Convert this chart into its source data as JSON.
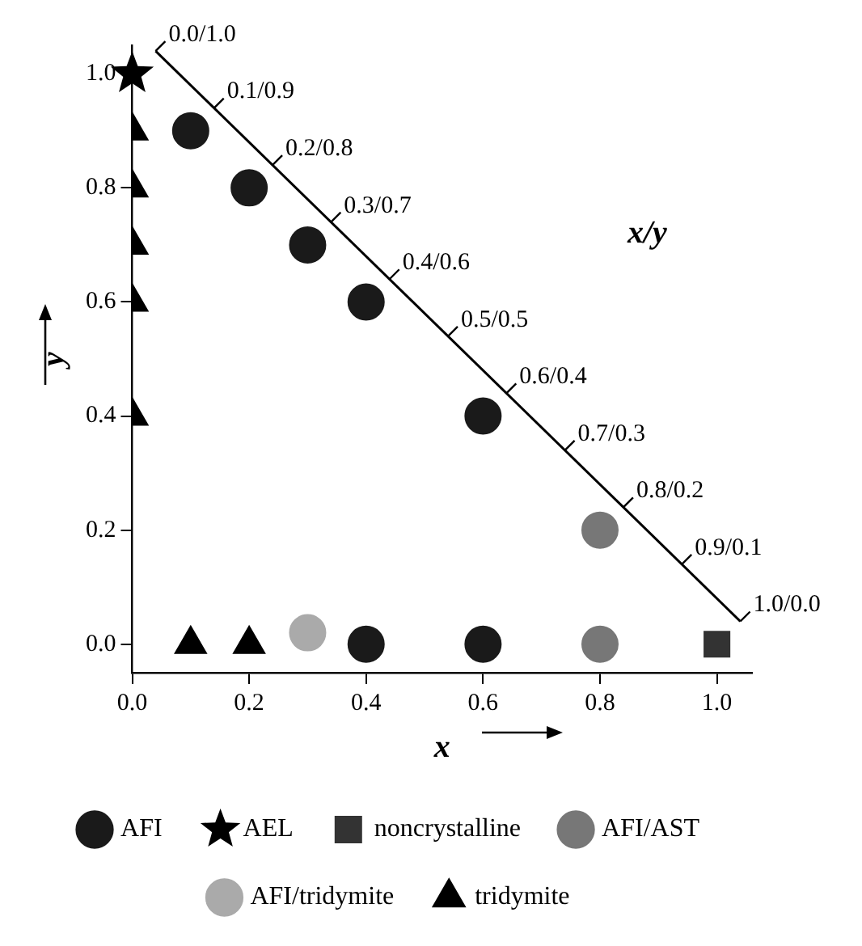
{
  "chart_data": {
    "type": "scatter",
    "xlabel": "x",
    "ylabel": "y",
    "xlim": [
      0,
      1.06
    ],
    "ylim": [
      -0.05,
      1.05
    ],
    "xticks": [
      {
        "value": 0,
        "label": "0.0"
      },
      {
        "value": 0.2,
        "label": "0.2"
      },
      {
        "value": 0.4,
        "label": "0.4"
      },
      {
        "value": 0.6,
        "label": "0.6"
      },
      {
        "value": 0.8,
        "label": "0.8"
      },
      {
        "value": 1,
        "label": "1.0"
      }
    ],
    "yticks": [
      {
        "value": 0,
        "label": "0.0"
      },
      {
        "value": 0.2,
        "label": "0.2"
      },
      {
        "value": 0.4,
        "label": "0.4"
      },
      {
        "value": 0.6,
        "label": "0.6"
      },
      {
        "value": 0.8,
        "label": "0.8"
      },
      {
        "value": 1,
        "label": "1.0"
      }
    ],
    "grid": false,
    "legend": "bottom",
    "series": [
      {
        "type": "line",
        "color": "#000000",
        "marker": "none",
        "x": [
          0.04,
          1.04
        ],
        "values": [
          1.04,
          0.04
        ]
      },
      {
        "name": "AFI",
        "color": "#1a1a1a",
        "marker": "circle",
        "x": [
          0.1,
          0.2,
          0.3,
          0.4,
          0.6,
          0.4,
          0.6
        ],
        "values": [
          0.9,
          0.8,
          0.7,
          0.6,
          0.4,
          0,
          0
        ]
      },
      {
        "name": "AEL",
        "color": "#000000",
        "marker": "star",
        "x": [
          0
        ],
        "values": [
          1
        ]
      },
      {
        "name": "noncrystalline",
        "color": "#333333",
        "marker": "square",
        "x": [
          1
        ],
        "values": [
          0
        ]
      },
      {
        "name": "AFI/AST",
        "color": "#777777",
        "marker": "circle",
        "x": [
          0.8,
          0.8
        ],
        "values": [
          0.2,
          0
        ]
      },
      {
        "name": "AFI/tridymite",
        "color": "#aaaaaa",
        "marker": "circle",
        "x": [
          0.3
        ],
        "values": [
          0.02
        ]
      },
      {
        "name": "tridymite",
        "color": "#000000",
        "marker": "triangle",
        "x": [
          0,
          0,
          0,
          0,
          0,
          0.1,
          0.2
        ],
        "values": [
          0.9,
          0.8,
          0.7,
          0.6,
          0.4,
          0,
          0
        ]
      }
    ],
    "annotations": [
      {
        "text": "0.0/1.0",
        "x": 0.04,
        "y": 1.04
      },
      {
        "text": "0.1/0.9",
        "x": 0.14,
        "y": 0.94
      },
      {
        "text": "0.2/0.8",
        "x": 0.24,
        "y": 0.84
      },
      {
        "text": "0.3/0.7",
        "x": 0.34,
        "y": 0.74
      },
      {
        "text": "0.4/0.6",
        "x": 0.44,
        "y": 0.64
      },
      {
        "text": "0.5/0.5",
        "x": 0.54,
        "y": 0.54
      },
      {
        "text": "0.6/0.4",
        "x": 0.64,
        "y": 0.44
      },
      {
        "text": "0.7/0.3",
        "x": 0.74,
        "y": 0.34
      },
      {
        "text": "0.8/0.2",
        "x": 0.84,
        "y": 0.24
      },
      {
        "text": "0.9/0.1",
        "x": 0.94,
        "y": 0.14
      },
      {
        "text": "1.0/0.0",
        "x": 1.04,
        "y": 0.04
      },
      "x/y"
    ]
  }
}
